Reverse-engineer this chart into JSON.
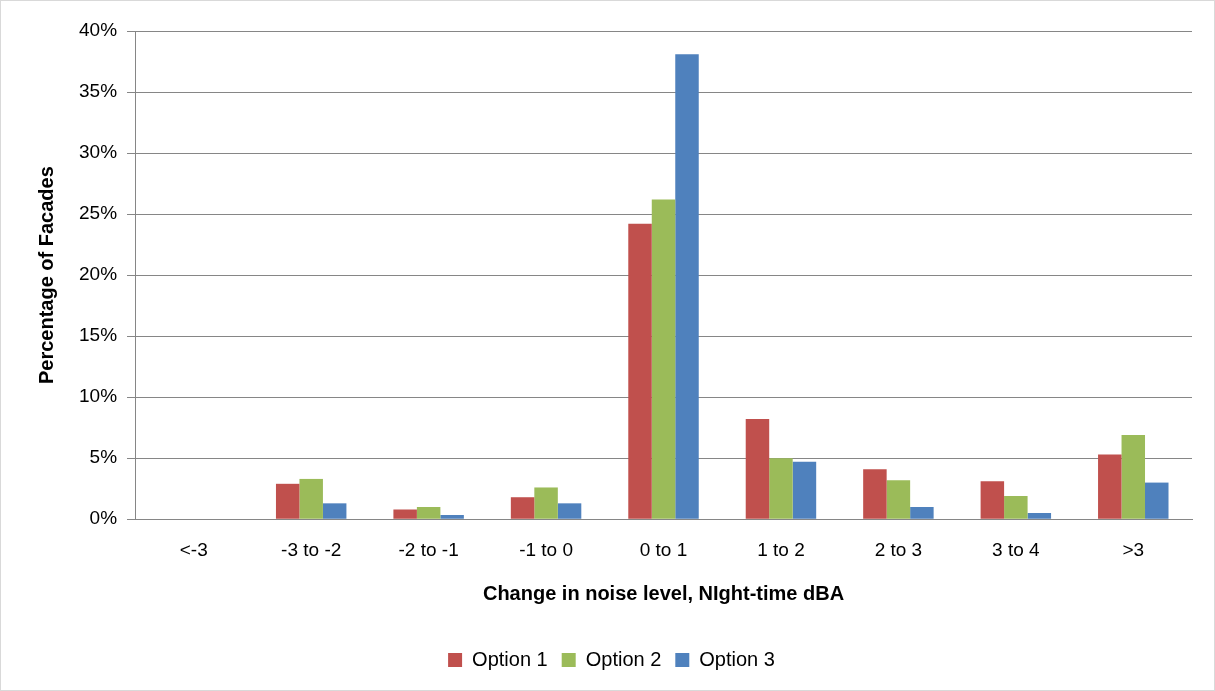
{
  "chart_data": {
    "type": "bar",
    "xlabel": "Change in noise level, NIght-time dBA",
    "ylabel": "Percentage of Facades",
    "categories": [
      "<-3",
      "-3 to -2",
      "-2 to -1",
      "-1 to 0",
      "0 to 1",
      "1 to 2",
      "2 to 3",
      "3 to 4",
      ">3"
    ],
    "series": [
      {
        "name": "Option 1",
        "color": "#c0504d",
        "values": [
          0,
          2.9,
          0.8,
          1.8,
          24.2,
          8.2,
          4.1,
          3.1,
          5.3
        ]
      },
      {
        "name": "Option 2",
        "color": "#9bbb59",
        "values": [
          0,
          3.3,
          1.0,
          2.6,
          26.2,
          5.0,
          3.2,
          1.9,
          6.9
        ]
      },
      {
        "name": "Option 3",
        "color": "#4f81bd",
        "values": [
          0,
          1.3,
          0.35,
          1.3,
          38.1,
          4.7,
          1.0,
          0.5,
          3.0
        ]
      }
    ],
    "ylim": [
      0,
      40
    ],
    "yticks": [
      {
        "value": 0,
        "label": "0%"
      },
      {
        "value": 5,
        "label": "5%"
      },
      {
        "value": 10,
        "label": "10%"
      },
      {
        "value": 15,
        "label": "15%"
      },
      {
        "value": 20,
        "label": "20%"
      },
      {
        "value": 25,
        "label": "25%"
      },
      {
        "value": 30,
        "label": "30%"
      },
      {
        "value": 35,
        "label": "35%"
      },
      {
        "value": 40,
        "label": "40%"
      }
    ],
    "grid": "y",
    "legend": "bottom"
  }
}
